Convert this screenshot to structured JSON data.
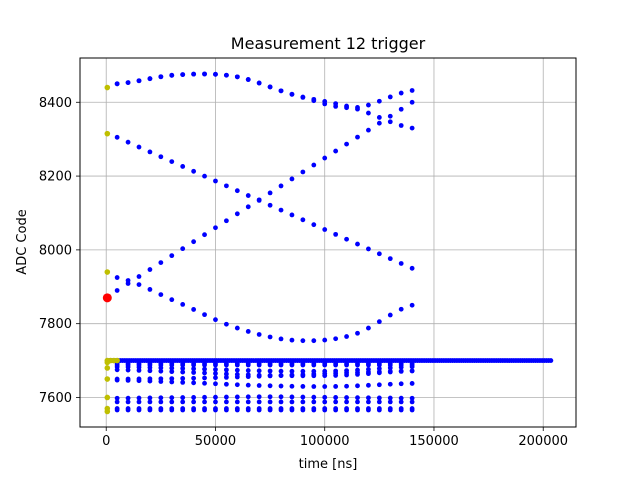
{
  "chart_data": {
    "type": "scatter",
    "title": "Measurement 12 trigger",
    "xlabel": "time [ns]",
    "ylabel": "ADC Code",
    "xlim": [
      -12000,
      215000
    ],
    "ylim": [
      7520,
      8520
    ],
    "xticks": [
      0,
      50000,
      100000,
      150000,
      200000
    ],
    "yticks": [
      7600,
      7800,
      8000,
      8200,
      8400
    ],
    "grid": true,
    "colors": {
      "main": "#0000ff",
      "start": "#bfbf00",
      "trigger": "#ff0000",
      "grid": "#b0b0b0"
    },
    "trigger_point": {
      "x": 500,
      "y": 7870
    },
    "start_points": [
      {
        "x": 500,
        "y": 8440
      },
      {
        "x": 500,
        "y": 8315
      },
      {
        "x": 500,
        "y": 7940
      },
      {
        "x": 500,
        "y": 7700
      },
      {
        "x": 500,
        "y": 7695
      },
      {
        "x": 500,
        "y": 7680
      },
      {
        "x": 500,
        "y": 7650
      },
      {
        "x": 500,
        "y": 7600
      },
      {
        "x": 500,
        "y": 7570
      },
      {
        "x": 500,
        "y": 7562
      },
      {
        "x": 2000,
        "y": 7700
      },
      {
        "x": 3500,
        "y": 7700
      },
      {
        "x": 5000,
        "y": 7700
      }
    ],
    "series": [
      {
        "type": "flat",
        "x_start": 500,
        "x_end": 204000,
        "step": 1000,
        "y": 7700
      },
      {
        "type": "flat",
        "x_start": 5000,
        "x_end": 140000,
        "step": 5000,
        "y": 7697
      },
      {
        "type": "flat",
        "x_start": 5000,
        "x_end": 140000,
        "step": 5000,
        "y": 7692
      },
      {
        "type": "flat",
        "x_start": 5000,
        "x_end": 140000,
        "step": 5000,
        "y": 7688
      },
      {
        "type": "curve",
        "x_start": 5000,
        "x_end": 140000,
        "step": 5000,
        "y0": 7683,
        "yk": [
          7683,
          7678,
          7672,
          7672,
          7683
        ]
      },
      {
        "type": "curve",
        "x_start": 5000,
        "x_end": 140000,
        "step": 5000,
        "y0": 7675,
        "yk": [
          7675,
          7668,
          7660,
          7660,
          7672
        ]
      },
      {
        "type": "curve",
        "x_start": 5000,
        "x_end": 140000,
        "step": 5000,
        "y0": 7650,
        "yk": [
          7650,
          7652,
          7658,
          7666,
          7672
        ]
      },
      {
        "type": "curve",
        "x_start": 5000,
        "x_end": 140000,
        "step": 5000,
        "y0": 7647,
        "yk": [
          7647,
          7640,
          7632,
          7630,
          7638
        ]
      },
      {
        "type": "curve",
        "x_start": 5000,
        "x_end": 140000,
        "step": 5000,
        "y0": 7598,
        "yk": [
          7598,
          7600,
          7602,
          7600,
          7598
        ]
      },
      {
        "type": "flat",
        "x_start": 5000,
        "x_end": 140000,
        "step": 5000,
        "y": 7588
      },
      {
        "type": "flat",
        "x_start": 5000,
        "x_end": 140000,
        "step": 5000,
        "y": 7570
      },
      {
        "type": "flat",
        "x_start": 5000,
        "x_end": 140000,
        "step": 5000,
        "y": 7566
      },
      {
        "type": "curve",
        "x_start": 5000,
        "x_end": 140000,
        "step": 5000,
        "y0": 8450,
        "yk": [
          8450,
          8474,
          8470,
          8420,
          8385,
          8432
        ]
      },
      {
        "type": "curve",
        "x_start": 5000,
        "x_end": 140000,
        "step": 5000,
        "y0": 8450,
        "yk": [
          8450,
          8474,
          8470,
          8420,
          8385,
          8330
        ]
      },
      {
        "type": "line",
        "x_start": 5000,
        "x_end": 140000,
        "step": 5000,
        "y_from": 8305,
        "y_to": 7950
      },
      {
        "type": "line",
        "x_start": 5000,
        "x_end": 140000,
        "step": 5000,
        "y_from": 7890,
        "y_to": 8400
      },
      {
        "type": "curve",
        "x_start": 5000,
        "x_end": 140000,
        "step": 5000,
        "y0": 7925,
        "yk": [
          7925,
          7860,
          7790,
          7755,
          7770,
          7850
        ]
      }
    ]
  }
}
